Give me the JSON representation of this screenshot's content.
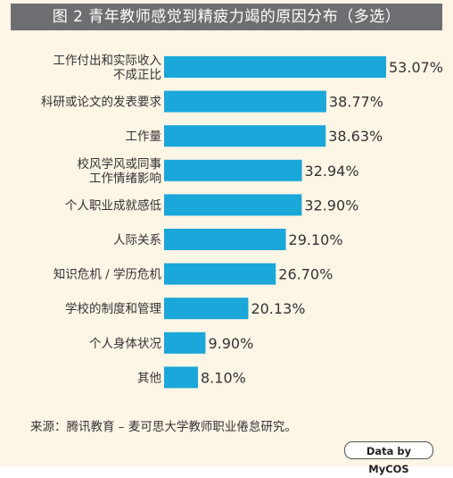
{
  "title": "图 2 青年教师感觉到精疲力竭的原因分布（多选）",
  "chart_data": {
    "type": "bar",
    "orientation": "horizontal",
    "categories": [
      "工作付出和实际收入\n不成正比",
      "科研或论文的发表要求",
      "工作量",
      "校风学风或同事\n工作情绪影响",
      "个人职业成就感低",
      "人际关系",
      "知识危机 / 学历危机",
      "学校的制度和管理",
      "个人身体状况",
      "其他"
    ],
    "values": [
      53.07,
      38.77,
      38.63,
      32.94,
      32.9,
      29.1,
      26.7,
      20.13,
      9.9,
      8.1
    ],
    "value_labels": [
      "53.07%",
      "38.77%",
      "38.63%",
      "32.94%",
      "32.90%",
      "29.10%",
      "26.70%",
      "20.13%",
      "9.90%",
      "8.10%"
    ],
    "bar_color": "#1aa7d9",
    "xlim": [
      0,
      53.07
    ],
    "grid": false
  },
  "source": "来源：腾讯教育 – 麦可思大学教师职业倦怠研究。",
  "badge": "Data by MyCOS"
}
